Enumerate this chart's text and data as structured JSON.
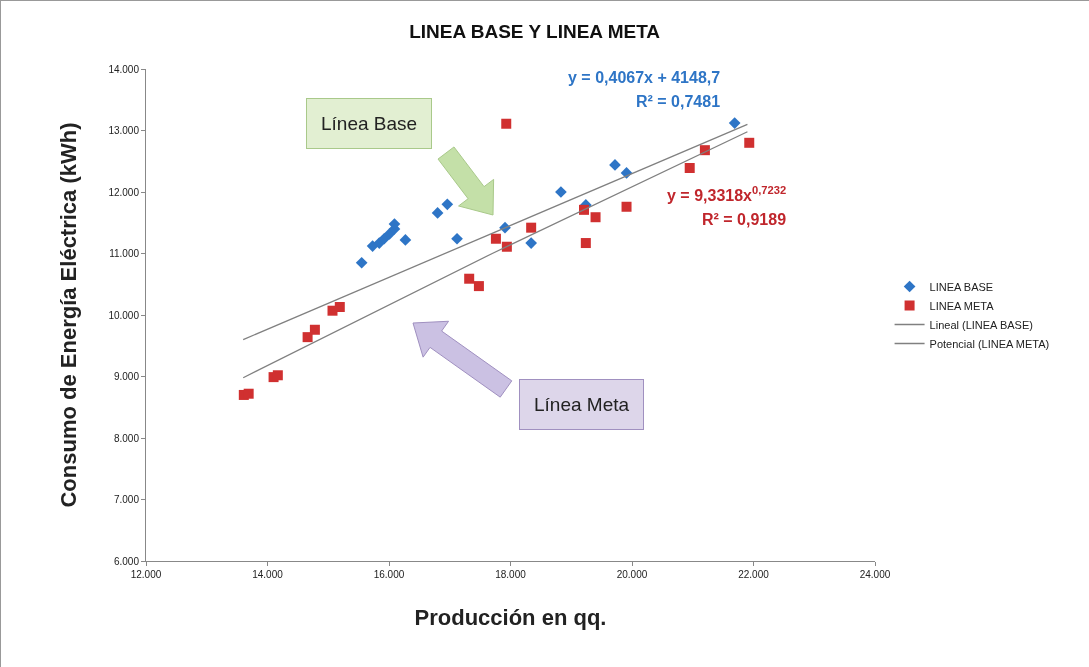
{
  "chart_data": {
    "type": "scatter",
    "title": "LINEA BASE Y LINEA META",
    "xlabel": "Producción en qq.",
    "ylabel": "Consumo de Energía Eléctrica (kWh)",
    "xlim": [
      12000,
      24000
    ],
    "xticks": [
      {
        "value": 12000,
        "label": "12.000"
      },
      {
        "value": 14000,
        "label": "14.000"
      },
      {
        "value": 16000,
        "label": "16.000"
      },
      {
        "value": 18000,
        "label": "18.000"
      },
      {
        "value": 20000,
        "label": "20.000"
      },
      {
        "value": 22000,
        "label": "22.000"
      },
      {
        "value": 24000,
        "label": "24.000"
      }
    ],
    "ylim": [
      6000,
      14000
    ],
    "yticks": [
      {
        "value": 6000,
        "label": "6.000"
      },
      {
        "value": 7000,
        "label": "7.000"
      },
      {
        "value": 8000,
        "label": "8.000"
      },
      {
        "value": 9000,
        "label": "9.000"
      },
      {
        "value": 10000,
        "label": "10.000"
      },
      {
        "value": 11000,
        "label": "11.000"
      },
      {
        "value": 12000,
        "label": "12.000"
      },
      {
        "value": 13000,
        "label": "13.000"
      },
      {
        "value": 14000,
        "label": "14.000"
      }
    ],
    "grid": false,
    "legend": "right",
    "series": [
      {
        "name": "LINEA BASE",
        "marker": "diamond",
        "color": "#2e75c6",
        "x": [
          15550,
          15730,
          15840,
          15920,
          16010,
          16090,
          16090,
          16270,
          16800,
          16960,
          17120,
          17910,
          18340,
          18830,
          19240,
          19720,
          19910,
          21690
        ],
        "values": [
          10850,
          11120,
          11170,
          11240,
          11320,
          11400,
          11480,
          11220,
          11660,
          11800,
          11240,
          11420,
          11170,
          12000,
          11790,
          12440,
          12310,
          13120
        ]
      },
      {
        "name": "LINEA META",
        "marker": "square",
        "color": "#d03030",
        "x": [
          13610,
          13690,
          14100,
          14170,
          14660,
          14780,
          15070,
          15190,
          17320,
          17480,
          17760,
          17940,
          17930,
          18340,
          19240,
          19210,
          19400,
          19910,
          20950,
          21200,
          21930
        ],
        "values": [
          8700,
          8720,
          8990,
          9020,
          9640,
          9760,
          10070,
          10130,
          10590,
          10470,
          11240,
          11110,
          13110,
          11420,
          11170,
          11710,
          11590,
          11760,
          12390,
          12680,
          12800
        ]
      },
      {
        "name": "Lineal (LINEA BASE)",
        "type": "line",
        "marker": "none",
        "line_style": "solid",
        "color": "#808080",
        "x": [
          13600,
          21900
        ],
        "values": [
          9600,
          13100
        ]
      },
      {
        "name": "Potencial (LINEA META)",
        "type": "line",
        "marker": "none",
        "line_style": "solid",
        "color": "#808080",
        "x": [
          13600,
          17700,
          21900
        ],
        "values": [
          8980,
          11000,
          12980
        ]
      }
    ],
    "annotations": [
      "y = 0,4067x + 4148,7",
      "R² = 0,7481",
      "y = 9,3318x$^{0,7232}$",
      "R² = 0,9189",
      "Línea Base",
      "Línea Meta"
    ]
  }
}
